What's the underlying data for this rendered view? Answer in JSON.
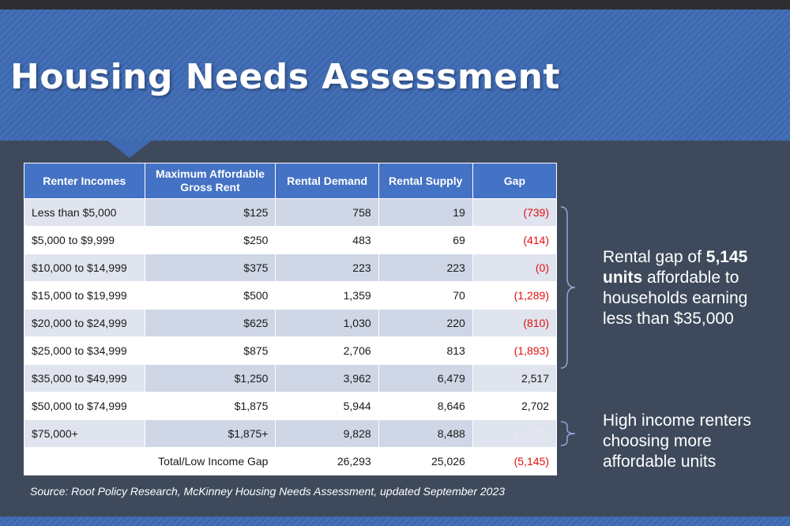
{
  "title": "Housing Needs Assessment",
  "table": {
    "headers": {
      "income": "Renter Incomes",
      "rent_line1": "Maximum Affordable",
      "rent_line2": "Gross Rent",
      "demand": "Rental Demand",
      "supply": "Rental Supply",
      "gap": "Gap"
    },
    "rows": [
      {
        "income": "Less than $5,000",
        "rent": "$125",
        "demand": "758",
        "supply": "19",
        "gap": "(739)"
      },
      {
        "income": "$5,000 to $9,999",
        "rent": "$250",
        "demand": "483",
        "supply": "69",
        "gap": "(414)"
      },
      {
        "income": "$10,000 to $14,999",
        "rent": "$375",
        "demand": "223",
        "supply": "223",
        "gap": "(0)"
      },
      {
        "income": "$15,000 to $19,999",
        "rent": "$500",
        "demand": "1,359",
        "supply": "70",
        "gap": "(1,289)"
      },
      {
        "income": "$20,000 to $24,999",
        "rent": "$625",
        "demand": "1,030",
        "supply": "220",
        "gap": "(810)"
      },
      {
        "income": "$25,000 to $34,999",
        "rent": "$875",
        "demand": "2,706",
        "supply": "813",
        "gap": "(1,893)"
      },
      {
        "income": "$35,000 to $49,999",
        "rent": "$1,250",
        "demand": "3,962",
        "supply": "6,479",
        "gap": "2,517"
      },
      {
        "income": "$50,000 to $74,999",
        "rent": "$1,875",
        "demand": "5,944",
        "supply": "8,646",
        "gap": "2,702"
      },
      {
        "income": "$75,000+",
        "rent": "$1,875+",
        "demand": "9,828",
        "supply": "8,488",
        "gap": "(1,340)"
      }
    ],
    "total": {
      "label": "Total/Low Income Gap",
      "demand": "26,293",
      "supply": "25,026",
      "gap": "(5,145)"
    }
  },
  "annotations": {
    "low_income": {
      "line1_prefix": "Rental gap of ",
      "line1_bold": "5,145",
      "line2_bold": "units",
      "line2_rest": " affordable to",
      "line3": "households earning",
      "line4": "less than $35,000"
    },
    "high_income": {
      "line1": "High income renters",
      "line2": "choosing more",
      "line3": "affordable units"
    }
  },
  "source": "Source: Root Policy Research, McKinney Housing Needs Assessment, updated September 2023",
  "colors": {
    "header_blue": "#4472c4",
    "background": "#3e4a5c",
    "negative_red": "#e01010"
  }
}
